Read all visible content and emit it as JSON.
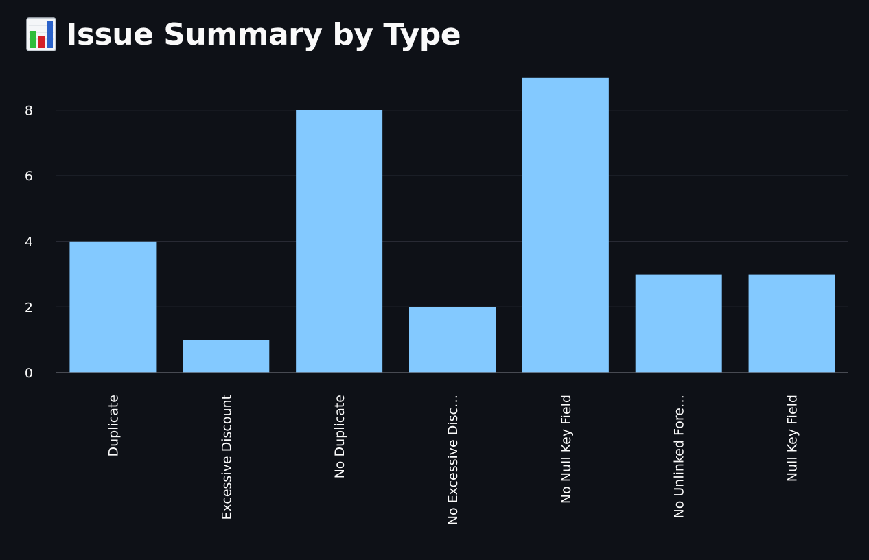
{
  "title": "Issue Summary by Type",
  "title_icon": "bar-chart-emoji-icon",
  "colors": {
    "background": "#0e1117",
    "bar": "#83c9ff",
    "grid": "#31333f",
    "text": "#fafafa"
  },
  "chart_data": {
    "type": "bar",
    "title": "Issue Summary by Type",
    "xlabel": "",
    "ylabel": "",
    "categories": [
      "Duplicate",
      "Excessive Discount",
      "No Duplicate",
      "No Excessive Disc…",
      "No Null Key Field",
      "No Unlinked Fore…",
      "Null Key Field"
    ],
    "values": [
      4,
      1,
      8,
      2,
      9,
      3,
      3
    ],
    "ylim": [
      0,
      9
    ],
    "yticks": [
      0,
      2,
      4,
      6,
      8
    ],
    "grid": true,
    "legend": "none"
  }
}
